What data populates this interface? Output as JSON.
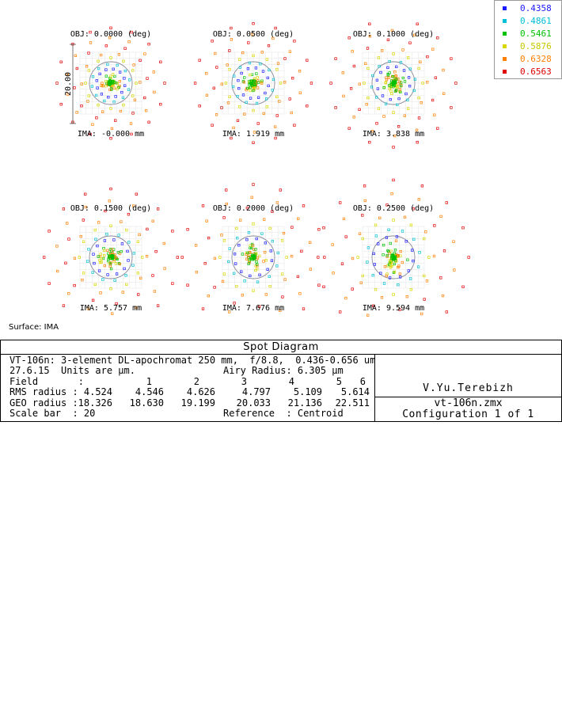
{
  "chart_data": {
    "type": "scatter",
    "title": "Spot Diagram",
    "scale_bar_label": "20.00",
    "surface": "Surface: IMA",
    "wavelengths": [
      {
        "value": "0.4358",
        "color": "#1a1aff"
      },
      {
        "value": "0.4861",
        "color": "#00c0d8"
      },
      {
        "value": "0.5461",
        "color": "#00c000"
      },
      {
        "value": "0.5876",
        "color": "#d8d800"
      },
      {
        "value": "0.6328",
        "color": "#ff7f00"
      },
      {
        "value": "0.6563",
        "color": "#e00000"
      }
    ],
    "fields": [
      {
        "obj": "OBJ: 0.0000 (deg)",
        "ima": "IMA: -0.000 mm",
        "rms": 4.524,
        "geo": 18.326
      },
      {
        "obj": "OBJ: 0.0500 (deg)",
        "ima": "IMA: 1.919 mm",
        "rms": 4.546,
        "geo": 18.63
      },
      {
        "obj": "OBJ: 0.1000 (deg)",
        "ima": "IMA: 3.838 mm",
        "rms": 4.626,
        "geo": 19.199
      },
      {
        "obj": "OBJ: 0.1500 (deg)",
        "ima": "IMA: 5.757 mm",
        "rms": 4.797,
        "geo": 20.033
      },
      {
        "obj": "OBJ: 0.2000 (deg)",
        "ima": "IMA: 7.676 mm",
        "rms": 5.109,
        "geo": 21.136
      },
      {
        "obj": "OBJ: 0.2500 (deg)",
        "ima": "IMA: 9.594 mm",
        "rms": 5.614,
        "geo": 22.511
      }
    ],
    "airy_radius": 6.305
  },
  "footer": {
    "title": "Spot Diagram",
    "line1": "VT-106n: 3-element DL-apochromat 250 mm,  f/8.8,  0.436-0.656 um",
    "date_units": "27.6.15  Units are µm.",
    "airy": "Airy Radius: 6.305 µm",
    "field_label": "Field       :",
    "field_numbers": [
      "1",
      "2",
      "3",
      "4",
      "5",
      "6"
    ],
    "rms_label": "RMS radius :",
    "rms_values": [
      "4.524",
      "4.546",
      "4.626",
      "4.797",
      "5.109",
      "5.614"
    ],
    "geo_label": "GEO radius :",
    "geo_values": [
      "18.326",
      "18.630",
      "19.199",
      "20.033",
      "21.136",
      "22.511"
    ],
    "scale_bar": "Scale bar  : 20",
    "reference": "Reference  : Centroid",
    "author": "V.Yu.Terebizh",
    "file": "vt-106n.zmx",
    "config": "Configuration 1 of 1"
  }
}
